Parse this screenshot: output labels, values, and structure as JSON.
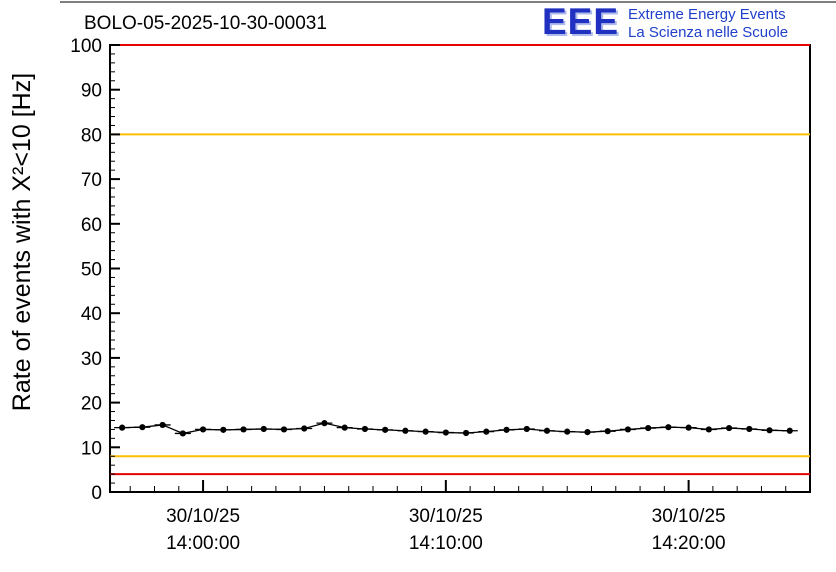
{
  "header": {
    "logo": {
      "acronym": "EEE",
      "line1": "Extreme Energy Events",
      "line2": "La Scienza nelle Scuole",
      "color": "#2040cc"
    }
  },
  "chart_data": {
    "type": "line",
    "title": "BOLO-05-2025-10-30-00031",
    "ylabel": "Rate of events with X²<10 [Hz]",
    "xlabel": "",
    "ylim": [
      0,
      100
    ],
    "yticks": [
      0,
      10,
      20,
      30,
      40,
      50,
      60,
      70,
      80,
      90,
      100
    ],
    "grid": false,
    "legend": null,
    "x_axis": {
      "domain_seconds": [
        -230,
        1500
      ],
      "major_ticks_seconds": [
        0,
        600,
        1200
      ],
      "minor_tick_step_seconds": 60,
      "tick_labels": [
        {
          "date": "30/10/25",
          "time": "14:00:00"
        },
        {
          "date": "30/10/25",
          "time": "14:10:00"
        },
        {
          "date": "30/10/25",
          "time": "14:20:00"
        }
      ]
    },
    "reference_lines": [
      {
        "name": "upper-alarm",
        "y": 100,
        "color": "#e60000"
      },
      {
        "name": "upper-warning",
        "y": 80,
        "color": "#ffbf00"
      },
      {
        "name": "lower-warning",
        "y": 8,
        "color": "#ffbf00"
      },
      {
        "name": "lower-alarm",
        "y": 4,
        "color": "#e60000"
      }
    ],
    "series": [
      {
        "name": "rate",
        "marker": "filled-circle",
        "color": "#000000",
        "x_seconds": [
          -200,
          -150,
          -100,
          -50,
          0,
          50,
          100,
          150,
          200,
          250,
          300,
          350,
          400,
          450,
          500,
          550,
          600,
          650,
          700,
          750,
          800,
          850,
          900,
          950,
          1000,
          1050,
          1100,
          1150,
          1200,
          1250,
          1300,
          1350,
          1400,
          1450
        ],
        "y_hz": [
          14.4,
          14.5,
          15.0,
          13.1,
          14.0,
          13.9,
          14.0,
          14.1,
          14.0,
          14.2,
          15.4,
          14.4,
          14.1,
          13.9,
          13.7,
          13.5,
          13.3,
          13.2,
          13.5,
          13.9,
          14.1,
          13.7,
          13.5,
          13.4,
          13.6,
          14.0,
          14.3,
          14.5,
          14.4,
          14.0,
          14.3,
          14.1,
          13.8,
          13.7
        ]
      }
    ]
  }
}
